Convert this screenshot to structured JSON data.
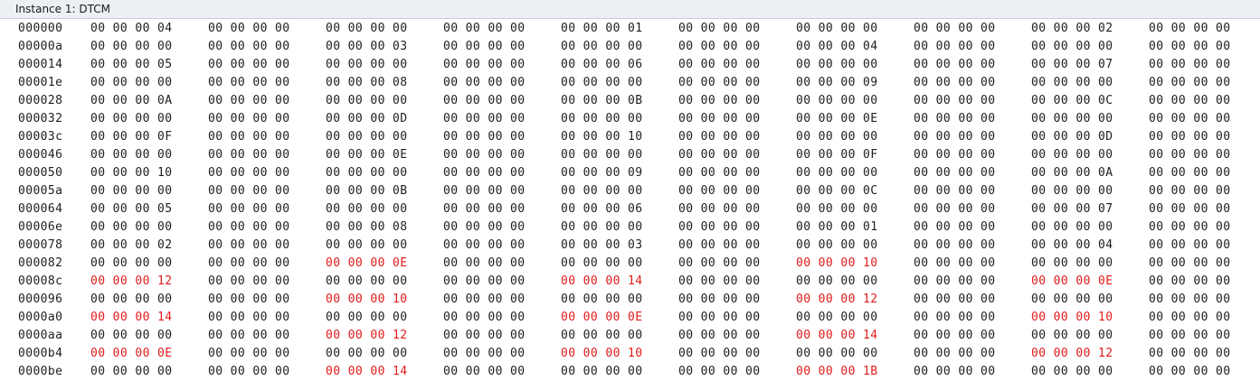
{
  "window": {
    "title": "Instance 1: DTCM"
  },
  "colors": {
    "normal": "#1e1e1e",
    "changed": "#e31b1b"
  },
  "dump": {
    "rows": [
      {
        "address": "000000",
        "words": [
          {
            "text": "00 00 00 04",
            "changed": false
          },
          {
            "text": "00 00 00 00",
            "changed": false
          },
          {
            "text": "00 00 00 00",
            "changed": false
          },
          {
            "text": "00 00 00 00",
            "changed": false
          },
          {
            "text": "00 00 00 01",
            "changed": false
          },
          {
            "text": "00 00 00 00",
            "changed": false
          },
          {
            "text": "00 00 00 00",
            "changed": false
          },
          {
            "text": "00 00 00 00",
            "changed": false
          },
          {
            "text": "00 00 00 02",
            "changed": false
          },
          {
            "text": "00 00 00 00",
            "changed": false
          }
        ]
      },
      {
        "address": "00000a",
        "words": [
          {
            "text": "00 00 00 00",
            "changed": false
          },
          {
            "text": "00 00 00 00",
            "changed": false
          },
          {
            "text": "00 00 00 03",
            "changed": false
          },
          {
            "text": "00 00 00 00",
            "changed": false
          },
          {
            "text": "00 00 00 00",
            "changed": false
          },
          {
            "text": "00 00 00 00",
            "changed": false
          },
          {
            "text": "00 00 00 04",
            "changed": false
          },
          {
            "text": "00 00 00 00",
            "changed": false
          },
          {
            "text": "00 00 00 00",
            "changed": false
          },
          {
            "text": "00 00 00 00",
            "changed": false
          }
        ]
      },
      {
        "address": "000014",
        "words": [
          {
            "text": "00 00 00 05",
            "changed": false
          },
          {
            "text": "00 00 00 00",
            "changed": false
          },
          {
            "text": "00 00 00 00",
            "changed": false
          },
          {
            "text": "00 00 00 00",
            "changed": false
          },
          {
            "text": "00 00 00 06",
            "changed": false
          },
          {
            "text": "00 00 00 00",
            "changed": false
          },
          {
            "text": "00 00 00 00",
            "changed": false
          },
          {
            "text": "00 00 00 00",
            "changed": false
          },
          {
            "text": "00 00 00 07",
            "changed": false
          },
          {
            "text": "00 00 00 00",
            "changed": false
          }
        ]
      },
      {
        "address": "00001e",
        "words": [
          {
            "text": "00 00 00 00",
            "changed": false
          },
          {
            "text": "00 00 00 00",
            "changed": false
          },
          {
            "text": "00 00 00 08",
            "changed": false
          },
          {
            "text": "00 00 00 00",
            "changed": false
          },
          {
            "text": "00 00 00 00",
            "changed": false
          },
          {
            "text": "00 00 00 00",
            "changed": false
          },
          {
            "text": "00 00 00 09",
            "changed": false
          },
          {
            "text": "00 00 00 00",
            "changed": false
          },
          {
            "text": "00 00 00 00",
            "changed": false
          },
          {
            "text": "00 00 00 00",
            "changed": false
          }
        ]
      },
      {
        "address": "000028",
        "words": [
          {
            "text": "00 00 00 0A",
            "changed": false
          },
          {
            "text": "00 00 00 00",
            "changed": false
          },
          {
            "text": "00 00 00 00",
            "changed": false
          },
          {
            "text": "00 00 00 00",
            "changed": false
          },
          {
            "text": "00 00 00 0B",
            "changed": false
          },
          {
            "text": "00 00 00 00",
            "changed": false
          },
          {
            "text": "00 00 00 00",
            "changed": false
          },
          {
            "text": "00 00 00 00",
            "changed": false
          },
          {
            "text": "00 00 00 0C",
            "changed": false
          },
          {
            "text": "00 00 00 00",
            "changed": false
          }
        ]
      },
      {
        "address": "000032",
        "words": [
          {
            "text": "00 00 00 00",
            "changed": false
          },
          {
            "text": "00 00 00 00",
            "changed": false
          },
          {
            "text": "00 00 00 0D",
            "changed": false
          },
          {
            "text": "00 00 00 00",
            "changed": false
          },
          {
            "text": "00 00 00 00",
            "changed": false
          },
          {
            "text": "00 00 00 00",
            "changed": false
          },
          {
            "text": "00 00 00 0E",
            "changed": false
          },
          {
            "text": "00 00 00 00",
            "changed": false
          },
          {
            "text": "00 00 00 00",
            "changed": false
          },
          {
            "text": "00 00 00 00",
            "changed": false
          }
        ]
      },
      {
        "address": "00003c",
        "words": [
          {
            "text": "00 00 00 0F",
            "changed": false
          },
          {
            "text": "00 00 00 00",
            "changed": false
          },
          {
            "text": "00 00 00 00",
            "changed": false
          },
          {
            "text": "00 00 00 00",
            "changed": false
          },
          {
            "text": "00 00 00 10",
            "changed": false
          },
          {
            "text": "00 00 00 00",
            "changed": false
          },
          {
            "text": "00 00 00 00",
            "changed": false
          },
          {
            "text": "00 00 00 00",
            "changed": false
          },
          {
            "text": "00 00 00 0D",
            "changed": false
          },
          {
            "text": "00 00 00 00",
            "changed": false
          }
        ]
      },
      {
        "address": "000046",
        "words": [
          {
            "text": "00 00 00 00",
            "changed": false
          },
          {
            "text": "00 00 00 00",
            "changed": false
          },
          {
            "text": "00 00 00 0E",
            "changed": false
          },
          {
            "text": "00 00 00 00",
            "changed": false
          },
          {
            "text": "00 00 00 00",
            "changed": false
          },
          {
            "text": "00 00 00 00",
            "changed": false
          },
          {
            "text": "00 00 00 0F",
            "changed": false
          },
          {
            "text": "00 00 00 00",
            "changed": false
          },
          {
            "text": "00 00 00 00",
            "changed": false
          },
          {
            "text": "00 00 00 00",
            "changed": false
          }
        ]
      },
      {
        "address": "000050",
        "words": [
          {
            "text": "00 00 00 10",
            "changed": false
          },
          {
            "text": "00 00 00 00",
            "changed": false
          },
          {
            "text": "00 00 00 00",
            "changed": false
          },
          {
            "text": "00 00 00 00",
            "changed": false
          },
          {
            "text": "00 00 00 09",
            "changed": false
          },
          {
            "text": "00 00 00 00",
            "changed": false
          },
          {
            "text": "00 00 00 00",
            "changed": false
          },
          {
            "text": "00 00 00 00",
            "changed": false
          },
          {
            "text": "00 00 00 0A",
            "changed": false
          },
          {
            "text": "00 00 00 00",
            "changed": false
          }
        ]
      },
      {
        "address": "00005a",
        "words": [
          {
            "text": "00 00 00 00",
            "changed": false
          },
          {
            "text": "00 00 00 00",
            "changed": false
          },
          {
            "text": "00 00 00 0B",
            "changed": false
          },
          {
            "text": "00 00 00 00",
            "changed": false
          },
          {
            "text": "00 00 00 00",
            "changed": false
          },
          {
            "text": "00 00 00 00",
            "changed": false
          },
          {
            "text": "00 00 00 0C",
            "changed": false
          },
          {
            "text": "00 00 00 00",
            "changed": false
          },
          {
            "text": "00 00 00 00",
            "changed": false
          },
          {
            "text": "00 00 00 00",
            "changed": false
          }
        ]
      },
      {
        "address": "000064",
        "words": [
          {
            "text": "00 00 00 05",
            "changed": false
          },
          {
            "text": "00 00 00 00",
            "changed": false
          },
          {
            "text": "00 00 00 00",
            "changed": false
          },
          {
            "text": "00 00 00 00",
            "changed": false
          },
          {
            "text": "00 00 00 06",
            "changed": false
          },
          {
            "text": "00 00 00 00",
            "changed": false
          },
          {
            "text": "00 00 00 00",
            "changed": false
          },
          {
            "text": "00 00 00 00",
            "changed": false
          },
          {
            "text": "00 00 00 07",
            "changed": false
          },
          {
            "text": "00 00 00 00",
            "changed": false
          }
        ]
      },
      {
        "address": "00006e",
        "words": [
          {
            "text": "00 00 00 00",
            "changed": false
          },
          {
            "text": "00 00 00 00",
            "changed": false
          },
          {
            "text": "00 00 00 08",
            "changed": false
          },
          {
            "text": "00 00 00 00",
            "changed": false
          },
          {
            "text": "00 00 00 00",
            "changed": false
          },
          {
            "text": "00 00 00 00",
            "changed": false
          },
          {
            "text": "00 00 00 01",
            "changed": false
          },
          {
            "text": "00 00 00 00",
            "changed": false
          },
          {
            "text": "00 00 00 00",
            "changed": false
          },
          {
            "text": "00 00 00 00",
            "changed": false
          }
        ]
      },
      {
        "address": "000078",
        "words": [
          {
            "text": "00 00 00 02",
            "changed": false
          },
          {
            "text": "00 00 00 00",
            "changed": false
          },
          {
            "text": "00 00 00 00",
            "changed": false
          },
          {
            "text": "00 00 00 00",
            "changed": false
          },
          {
            "text": "00 00 00 03",
            "changed": false
          },
          {
            "text": "00 00 00 00",
            "changed": false
          },
          {
            "text": "00 00 00 00",
            "changed": false
          },
          {
            "text": "00 00 00 00",
            "changed": false
          },
          {
            "text": "00 00 00 04",
            "changed": false
          },
          {
            "text": "00 00 00 00",
            "changed": false
          }
        ]
      },
      {
        "address": "000082",
        "words": [
          {
            "text": "00 00 00 00",
            "changed": false
          },
          {
            "text": "00 00 00 00",
            "changed": false
          },
          {
            "text": "00 00 00 0E",
            "changed": true
          },
          {
            "text": "00 00 00 00",
            "changed": false
          },
          {
            "text": "00 00 00 00",
            "changed": false
          },
          {
            "text": "00 00 00 00",
            "changed": false
          },
          {
            "text": "00 00 00 10",
            "changed": true
          },
          {
            "text": "00 00 00 00",
            "changed": false
          },
          {
            "text": "00 00 00 00",
            "changed": false
          },
          {
            "text": "00 00 00 00",
            "changed": false
          }
        ]
      },
      {
        "address": "00008c",
        "words": [
          {
            "text": "00 00 00 12",
            "changed": true
          },
          {
            "text": "00 00 00 00",
            "changed": false
          },
          {
            "text": "00 00 00 00",
            "changed": false
          },
          {
            "text": "00 00 00 00",
            "changed": false
          },
          {
            "text": "00 00 00 14",
            "changed": true
          },
          {
            "text": "00 00 00 00",
            "changed": false
          },
          {
            "text": "00 00 00 00",
            "changed": false
          },
          {
            "text": "00 00 00 00",
            "changed": false
          },
          {
            "text": "00 00 00 0E",
            "changed": true
          },
          {
            "text": "00 00 00 00",
            "changed": false
          }
        ]
      },
      {
        "address": "000096",
        "words": [
          {
            "text": "00 00 00 00",
            "changed": false
          },
          {
            "text": "00 00 00 00",
            "changed": false
          },
          {
            "text": "00 00 00 10",
            "changed": true
          },
          {
            "text": "00 00 00 00",
            "changed": false
          },
          {
            "text": "00 00 00 00",
            "changed": false
          },
          {
            "text": "00 00 00 00",
            "changed": false
          },
          {
            "text": "00 00 00 12",
            "changed": true
          },
          {
            "text": "00 00 00 00",
            "changed": false
          },
          {
            "text": "00 00 00 00",
            "changed": false
          },
          {
            "text": "00 00 00 00",
            "changed": false
          }
        ]
      },
      {
        "address": "0000a0",
        "words": [
          {
            "text": "00 00 00 14",
            "changed": true
          },
          {
            "text": "00 00 00 00",
            "changed": false
          },
          {
            "text": "00 00 00 00",
            "changed": false
          },
          {
            "text": "00 00 00 00",
            "changed": false
          },
          {
            "text": "00 00 00 0E",
            "changed": true
          },
          {
            "text": "00 00 00 00",
            "changed": false
          },
          {
            "text": "00 00 00 00",
            "changed": false
          },
          {
            "text": "00 00 00 00",
            "changed": false
          },
          {
            "text": "00 00 00 10",
            "changed": true
          },
          {
            "text": "00 00 00 00",
            "changed": false
          }
        ]
      },
      {
        "address": "0000aa",
        "words": [
          {
            "text": "00 00 00 00",
            "changed": false
          },
          {
            "text": "00 00 00 00",
            "changed": false
          },
          {
            "text": "00 00 00 12",
            "changed": true
          },
          {
            "text": "00 00 00 00",
            "changed": false
          },
          {
            "text": "00 00 00 00",
            "changed": false
          },
          {
            "text": "00 00 00 00",
            "changed": false
          },
          {
            "text": "00 00 00 14",
            "changed": true
          },
          {
            "text": "00 00 00 00",
            "changed": false
          },
          {
            "text": "00 00 00 00",
            "changed": false
          },
          {
            "text": "00 00 00 00",
            "changed": false
          }
        ]
      },
      {
        "address": "0000b4",
        "words": [
          {
            "text": "00 00 00 0E",
            "changed": true
          },
          {
            "text": "00 00 00 00",
            "changed": false
          },
          {
            "text": "00 00 00 00",
            "changed": false
          },
          {
            "text": "00 00 00 00",
            "changed": false
          },
          {
            "text": "00 00 00 10",
            "changed": true
          },
          {
            "text": "00 00 00 00",
            "changed": false
          },
          {
            "text": "00 00 00 00",
            "changed": false
          },
          {
            "text": "00 00 00 00",
            "changed": false
          },
          {
            "text": "00 00 00 12",
            "changed": true
          },
          {
            "text": "00 00 00 00",
            "changed": false
          }
        ]
      },
      {
        "address": "0000be",
        "words": [
          {
            "text": "00 00 00 00",
            "changed": false
          },
          {
            "text": "00 00 00 00",
            "changed": false
          },
          {
            "text": "00 00 00 14",
            "changed": true
          },
          {
            "text": "00 00 00 00",
            "changed": false
          },
          {
            "text": "00 00 00 00",
            "changed": false
          },
          {
            "text": "00 00 00 00",
            "changed": false
          },
          {
            "text": "00 00 00 1B",
            "changed": true
          },
          {
            "text": "00 00 00 00",
            "changed": false
          },
          {
            "text": "00 00 00 00",
            "changed": false
          },
          {
            "text": "00 00 00 00",
            "changed": false
          }
        ]
      }
    ]
  }
}
